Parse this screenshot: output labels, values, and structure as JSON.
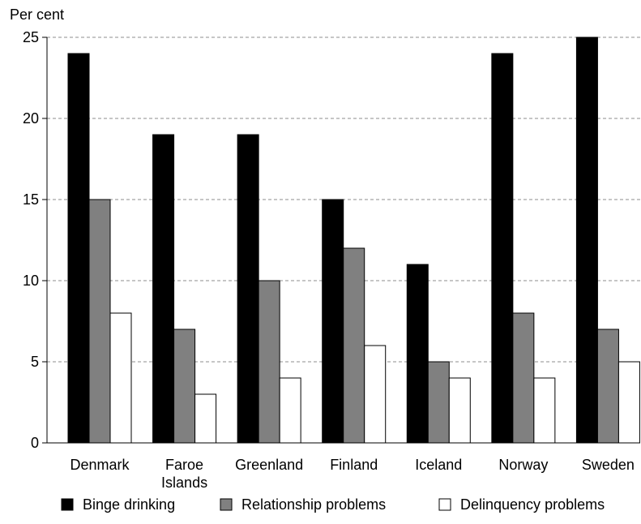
{
  "chart_data": {
    "type": "bar",
    "title": "",
    "ylabel": "Per cent",
    "xlabel": "",
    "ylim": [
      0,
      25
    ],
    "yticks": [
      0,
      5,
      10,
      15,
      20,
      25
    ],
    "grid": "horizontal dashed",
    "legend_position": "bottom",
    "categories": [
      [
        "Denmark"
      ],
      [
        "Faroe",
        "Islands"
      ],
      [
        "Greenland"
      ],
      [
        "Finland"
      ],
      [
        "Iceland"
      ],
      [
        "Norway"
      ],
      [
        "Sweden"
      ]
    ],
    "series": [
      {
        "name": "Binge drinking",
        "color": "#000000",
        "values": [
          24,
          19,
          19,
          15,
          11,
          24,
          25
        ]
      },
      {
        "name": "Relationship problems",
        "color": "#808080",
        "values": [
          15,
          7,
          10,
          12,
          5,
          8,
          7
        ]
      },
      {
        "name": "Delinquency problems",
        "color": "#ffffff",
        "values": [
          8,
          3,
          4,
          6,
          4,
          4,
          5
        ]
      }
    ]
  }
}
